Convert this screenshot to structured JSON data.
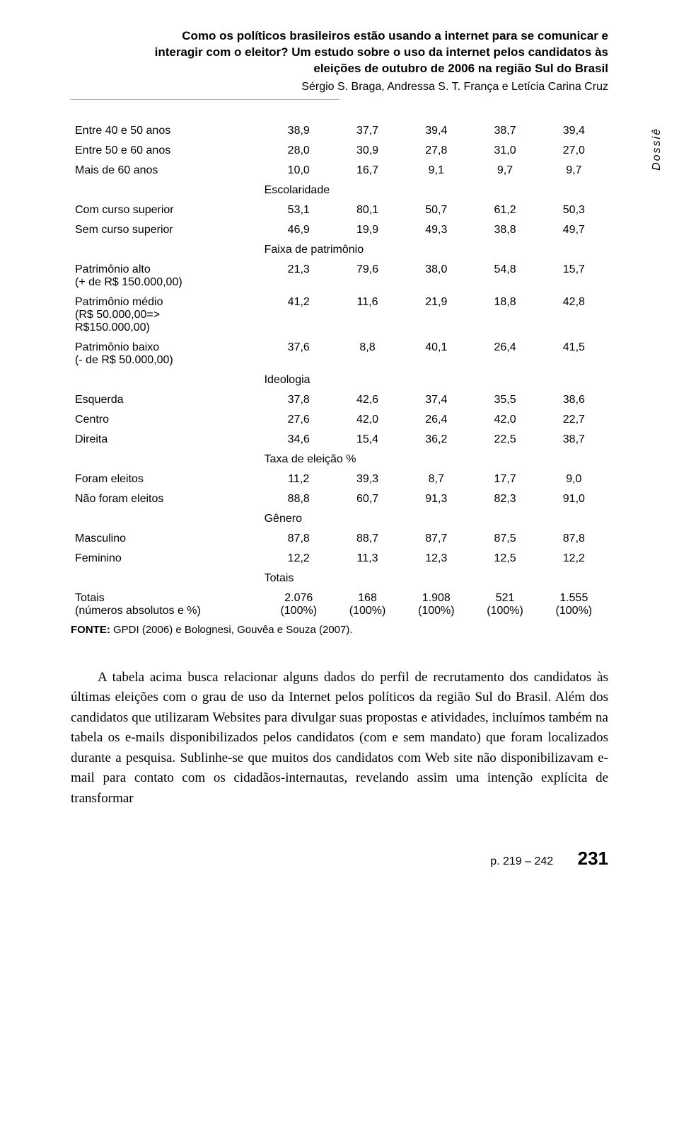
{
  "header": {
    "title_line1": "Como os políticos brasileiros estão usando a internet para se comunicar e",
    "title_line2": "interagir com o eleitor? Um estudo sobre o uso da internet pelos candidatos às",
    "title_line3": "eleições de outubro de 2006 na região Sul do Brasil",
    "authors": "Sérgio S. Braga, Andressa S. T. França e Letícia Carina Cruz"
  },
  "dossie": "Dossiê",
  "table": {
    "sections": {
      "escolaridade": "Escolaridade",
      "faixa_patrimonio": "Faixa de patrimônio",
      "ideologia": "Ideologia",
      "taxa_eleicao": "Taxa de eleição %",
      "genero": "Gênero",
      "totais": "Totais"
    },
    "rows": [
      {
        "label": "Entre 40 e 50 anos",
        "v": [
          "38,9",
          "37,7",
          "39,4",
          "38,7",
          "39,4"
        ]
      },
      {
        "label": "Entre 50 e 60 anos",
        "v": [
          "28,0",
          "30,9",
          "27,8",
          "31,0",
          "27,0"
        ]
      },
      {
        "label": "Mais de 60 anos",
        "v": [
          "10,0",
          "16,7",
          "9,1",
          "9,7",
          "9,7"
        ]
      },
      {
        "label": "Com curso superior",
        "v": [
          "53,1",
          "80,1",
          "50,7",
          "61,2",
          "50,3"
        ]
      },
      {
        "label": "Sem curso superior",
        "v": [
          "46,9",
          "19,9",
          "49,3",
          "38,8",
          "49,7"
        ]
      },
      {
        "label": "Patrimônio alto\n(+ de R$ 150.000,00)",
        "v": [
          "21,3",
          "79,6",
          "38,0",
          "54,8",
          "15,7"
        ]
      },
      {
        "label": "Patrimônio médio\n(R$ 50.000,00=>\nR$150.000,00)",
        "v": [
          "41,2",
          "11,6",
          "21,9",
          "18,8",
          "42,8"
        ]
      },
      {
        "label": "Patrimônio baixo\n(- de R$ 50.000,00)",
        "v": [
          "37,6",
          "8,8",
          "40,1",
          "26,4",
          "41,5"
        ]
      },
      {
        "label": "Esquerda",
        "v": [
          "37,8",
          "42,6",
          "37,4",
          "35,5",
          "38,6"
        ]
      },
      {
        "label": "Centro",
        "v": [
          "27,6",
          "42,0",
          "26,4",
          "42,0",
          "22,7"
        ]
      },
      {
        "label": "Direita",
        "v": [
          "34,6",
          "15,4",
          "36,2",
          "22,5",
          "38,7"
        ]
      },
      {
        "label": "Foram eleitos",
        "v": [
          "11,2",
          "39,3",
          "8,7",
          "17,7",
          "9,0"
        ]
      },
      {
        "label": "Não foram eleitos",
        "v": [
          "88,8",
          "60,7",
          "91,3",
          "82,3",
          "91,0"
        ]
      },
      {
        "label": "Masculino",
        "v": [
          "87,8",
          "88,7",
          "87,7",
          "87,5",
          "87,8"
        ]
      },
      {
        "label": "Feminino",
        "v": [
          "12,2",
          "11,3",
          "12,3",
          "12,5",
          "12,2"
        ]
      },
      {
        "label": "Totais\n(números absolutos e %)",
        "v": [
          "2.076\n(100%)",
          "168\n(100%)",
          "1.908\n(100%)",
          "521\n(100%)",
          "1.555\n(100%)"
        ]
      }
    ]
  },
  "fonte": {
    "label": "FONTE:",
    "text": " GPDI (2006) e Bolognesi, Gouvêa e Souza (2007)."
  },
  "body_text": "A tabela acima busca relacionar alguns dados do perfil de recrutamento dos candidatos às últimas eleições com o grau de uso da Internet pelos políticos da região Sul do Brasil. Além dos candidatos que utilizaram Websites para divulgar suas propostas e atividades, incluímos também na tabela os e-mails disponibilizados pelos candidatos (com e sem mandato) que foram localizados durante a pesquisa. Sublinhe-se que muitos dos candidatos com Web site não disponibilizavam e-mail para contato com os cidadãos-internautas, revelando assim uma intenção explícita de transformar",
  "footer": {
    "pages": "p. 219 – 242",
    "page_number": "231"
  }
}
